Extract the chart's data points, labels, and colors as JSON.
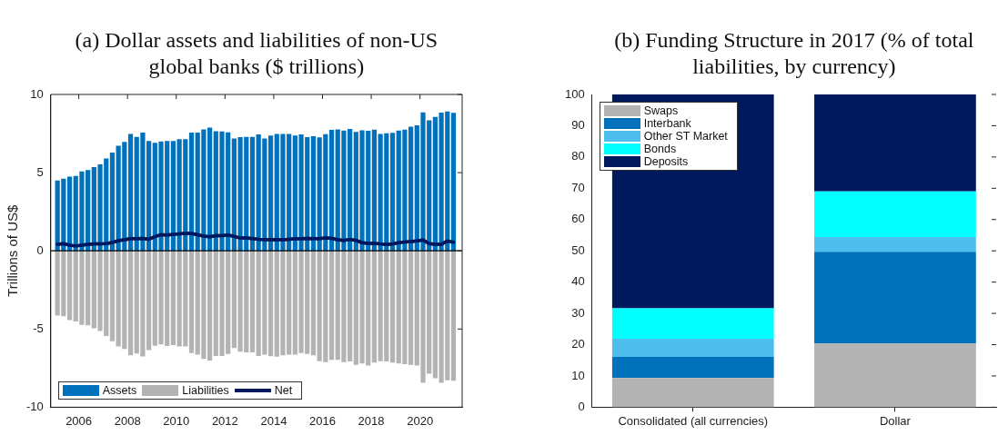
{
  "chart_data": [
    {
      "type": "bar",
      "title": "(a) Dollar assets and liabilities of non-US global banks ($ trillions)",
      "ylabel": "Trillions of US$",
      "x": [
        2005.125,
        2005.375,
        2005.625,
        2005.875,
        2006.125,
        2006.375,
        2006.625,
        2006.875,
        2007.125,
        2007.375,
        2007.625,
        2007.875,
        2008.125,
        2008.375,
        2008.625,
        2008.875,
        2009.125,
        2009.375,
        2009.625,
        2009.875,
        2010.125,
        2010.375,
        2010.625,
        2010.875,
        2011.125,
        2011.375,
        2011.625,
        2011.875,
        2012.125,
        2012.375,
        2012.625,
        2012.875,
        2013.125,
        2013.375,
        2013.625,
        2013.875,
        2014.125,
        2014.375,
        2014.625,
        2014.875,
        2015.125,
        2015.375,
        2015.625,
        2015.875,
        2016.125,
        2016.375,
        2016.625,
        2016.875,
        2017.125,
        2017.375,
        2017.625,
        2017.875,
        2018.125,
        2018.375,
        2018.625,
        2018.875,
        2019.125,
        2019.375,
        2019.625,
        2019.875,
        2020.125,
        2020.375,
        2020.625,
        2020.875,
        2021.125,
        2021.375
      ],
      "series": [
        {
          "name": "Assets",
          "color": "#0072bd",
          "values": [
            4.5,
            4.62,
            4.75,
            4.79,
            5.08,
            5.17,
            5.36,
            5.53,
            5.9,
            6.28,
            6.72,
            6.97,
            7.48,
            7.29,
            7.56,
            7.02,
            6.91,
            7.0,
            7.02,
            7.02,
            7.14,
            7.14,
            7.56,
            7.56,
            7.77,
            7.88,
            7.65,
            7.63,
            7.58,
            7.18,
            7.27,
            7.29,
            7.29,
            7.44,
            7.19,
            7.37,
            7.48,
            7.48,
            7.48,
            7.37,
            7.44,
            7.27,
            7.33,
            7.25,
            7.46,
            7.73,
            7.77,
            7.69,
            7.79,
            7.61,
            7.71,
            7.67,
            7.75,
            7.48,
            7.52,
            7.54,
            7.69,
            7.75,
            7.94,
            8.02,
            8.85,
            8.34,
            8.57,
            8.84,
            8.91,
            8.82
          ]
        },
        {
          "name": "Liabilities",
          "color": "#b3b3b3",
          "values": [
            -4.14,
            -4.18,
            -4.43,
            -4.52,
            -4.73,
            -4.77,
            -4.96,
            -5.13,
            -5.44,
            -5.78,
            -6.11,
            -6.28,
            -6.68,
            -6.56,
            -6.76,
            -6.34,
            -6.07,
            -5.99,
            -6.09,
            -6.03,
            -6.11,
            -6.11,
            -6.53,
            -6.64,
            -6.91,
            -7.02,
            -6.72,
            -6.72,
            -6.59,
            -6.22,
            -6.45,
            -6.49,
            -6.49,
            -6.72,
            -6.64,
            -6.74,
            -6.77,
            -6.68,
            -6.64,
            -6.64,
            -6.53,
            -6.59,
            -6.68,
            -7.06,
            -7.12,
            -6.97,
            -6.97,
            -7.12,
            -7.08,
            -7.29,
            -7.21,
            -7.33,
            -7.14,
            -7.06,
            -7.08,
            -7.14,
            -7.21,
            -7.25,
            -7.29,
            -7.33,
            -8.44,
            -7.86,
            -8.15,
            -8.44,
            -8.28,
            -8.3
          ]
        },
        {
          "name": "Net",
          "type": "line",
          "color": "#00195e",
          "values": [
            0.42,
            0.46,
            0.36,
            0.31,
            0.36,
            0.42,
            0.44,
            0.44,
            0.46,
            0.53,
            0.65,
            0.71,
            0.78,
            0.78,
            0.8,
            0.74,
            0.9,
            1.03,
            1.01,
            1.05,
            1.09,
            1.11,
            1.11,
            1.03,
            0.94,
            0.9,
            0.97,
            0.97,
            1.01,
            0.92,
            0.82,
            0.82,
            0.78,
            0.74,
            0.73,
            0.71,
            0.73,
            0.71,
            0.74,
            0.76,
            0.78,
            0.8,
            0.78,
            0.78,
            0.82,
            0.8,
            0.71,
            0.67,
            0.73,
            0.67,
            0.52,
            0.48,
            0.48,
            0.44,
            0.4,
            0.44,
            0.52,
            0.57,
            0.59,
            0.63,
            0.69,
            0.46,
            0.42,
            0.42,
            0.63,
            0.55
          ]
        }
      ],
      "xlim": [
        2004.85,
        2021.73
      ],
      "xticks": [
        2006,
        2008,
        2010,
        2012,
        2014,
        2016,
        2018,
        2020
      ],
      "ylim": [
        -10,
        10
      ],
      "yticks": [
        -10,
        -5,
        0,
        5,
        10
      ],
      "ref_lines": [
        {
          "axis": "y",
          "value": 0,
          "color": "#000000"
        }
      ],
      "grid": false,
      "legend": "bottom left",
      "stacked": true
    },
    {
      "type": "bar",
      "title": "(b) Funding Structure in 2017 (% of total liabilities, by currency)",
      "categories": [
        "Consolidated (all currencies)",
        "Dollar"
      ],
      "stacked": true,
      "series": [
        {
          "name": "Swaps",
          "color": "#b3b3b3",
          "values": [
            9.3,
            20.4
          ]
        },
        {
          "name": "Interbank",
          "color": "#0072bd",
          "values": [
            6.8,
            29.3
          ]
        },
        {
          "name": "Other ST Market",
          "color": "#4dbeee",
          "values": [
            5.8,
            4.7
          ]
        },
        {
          "name": "Bonds",
          "color": "#00ffff",
          "values": [
            9.7,
            14.6
          ]
        },
        {
          "name": "Deposits",
          "color": "#00195e",
          "values": [
            68.4,
            31
          ]
        }
      ],
      "ylim": [
        0,
        100
      ],
      "yticks": [
        0,
        10,
        20,
        30,
        40,
        50,
        60,
        70,
        80,
        90,
        100
      ],
      "grid": false,
      "legend": "top left"
    }
  ]
}
